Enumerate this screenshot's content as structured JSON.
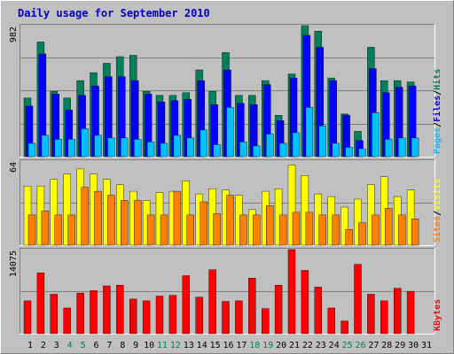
{
  "colors": {
    "background": "#c0c0c0",
    "title": "#0000cc",
    "hits": "#00805c",
    "files": "#0000ff",
    "pages": "#00c0ff",
    "visits": "#ffff00",
    "sites": "#ff8000",
    "kbytes": "#ff0000",
    "weekday_label": "#000000",
    "weekend_label": "#00805c"
  },
  "chart_data": {
    "type": "bar",
    "title": "Daily usage for September 2010",
    "categories": [
      "1",
      "2",
      "3",
      "4",
      "5",
      "6",
      "7",
      "8",
      "9",
      "10",
      "11",
      "12",
      "13",
      "14",
      "15",
      "16",
      "17",
      "18",
      "19",
      "20",
      "21",
      "22",
      "23",
      "24",
      "25",
      "26",
      "27",
      "28",
      "29",
      "30",
      "31"
    ],
    "weekend_days": [
      "4",
      "5",
      "11",
      "12",
      "18",
      "19",
      "25",
      "26"
    ],
    "panels": [
      {
        "name": "pages_files_hits",
        "max_label": "982",
        "ylim": [
          0,
          982
        ],
        "legend": [
          "Pages",
          "Files",
          "Hits"
        ],
        "series": [
          {
            "name": "Hits",
            "values": [
              440,
              860,
              490,
              440,
              570,
              630,
              700,
              750,
              760,
              490,
              460,
              460,
              480,
              650,
              490,
              780,
              460,
              460,
              570,
              310,
              620,
              982,
              940,
              590,
              320,
              190,
              820,
              570,
              570,
              560,
              0
            ]
          },
          {
            "name": "Files",
            "values": [
              380,
              770,
              470,
              350,
              460,
              530,
              600,
              600,
              570,
              470,
              410,
              420,
              430,
              570,
              390,
              650,
              400,
              390,
              540,
              270,
              590,
              910,
              820,
              570,
              310,
              120,
              660,
              480,
              520,
              530,
              0
            ]
          },
          {
            "name": "Pages",
            "values": [
              100,
              160,
              130,
              130,
              210,
              160,
              140,
              140,
              130,
              110,
              100,
              160,
              140,
              200,
              90,
              370,
              110,
              80,
              170,
              100,
              180,
              370,
              230,
              100,
              70,
              60,
              330,
              130,
              140,
              140,
              0
            ]
          }
        ]
      },
      {
        "name": "sites_visits",
        "max_label": "64",
        "ylim": [
          0,
          64
        ],
        "legend": [
          "Sites",
          "Visits"
        ],
        "series": [
          {
            "name": "Visits",
            "values": [
              45,
              45,
              50,
              54,
              58,
              54,
              50,
              46,
              41,
              34,
              40,
              41,
              49,
              39,
              43,
              42,
              38,
              27,
              41,
              43,
              61,
              53,
              39,
              37,
              29,
              35,
              46,
              52,
              37,
              42,
              0
            ]
          },
          {
            "name": "Sites",
            "values": [
              23,
              26,
              23,
              23,
              44,
              41,
              38,
              34,
              34,
              23,
              23,
              41,
              23,
              33,
              24,
              38,
              23,
              23,
              30,
              23,
              25,
              25,
              23,
              23,
              12,
              17,
              23,
              28,
              23,
              20,
              0
            ]
          }
        ]
      },
      {
        "name": "kbytes",
        "max_label": "14075",
        "ylim": [
          0,
          14075
        ],
        "legend": [
          "KBytes"
        ],
        "series": [
          {
            "name": "KBytes",
            "values": [
              5500,
              10200,
              6600,
              4300,
              6800,
              7200,
              8000,
              8100,
              5800,
              5500,
              6300,
              6400,
              9700,
              6100,
              10700,
              5400,
              5500,
              9300,
              4200,
              8100,
              14075,
              10600,
              7800,
              4300,
              2100,
              11600,
              6600,
              5500,
              7600,
              7100,
              0
            ]
          }
        ]
      }
    ]
  }
}
